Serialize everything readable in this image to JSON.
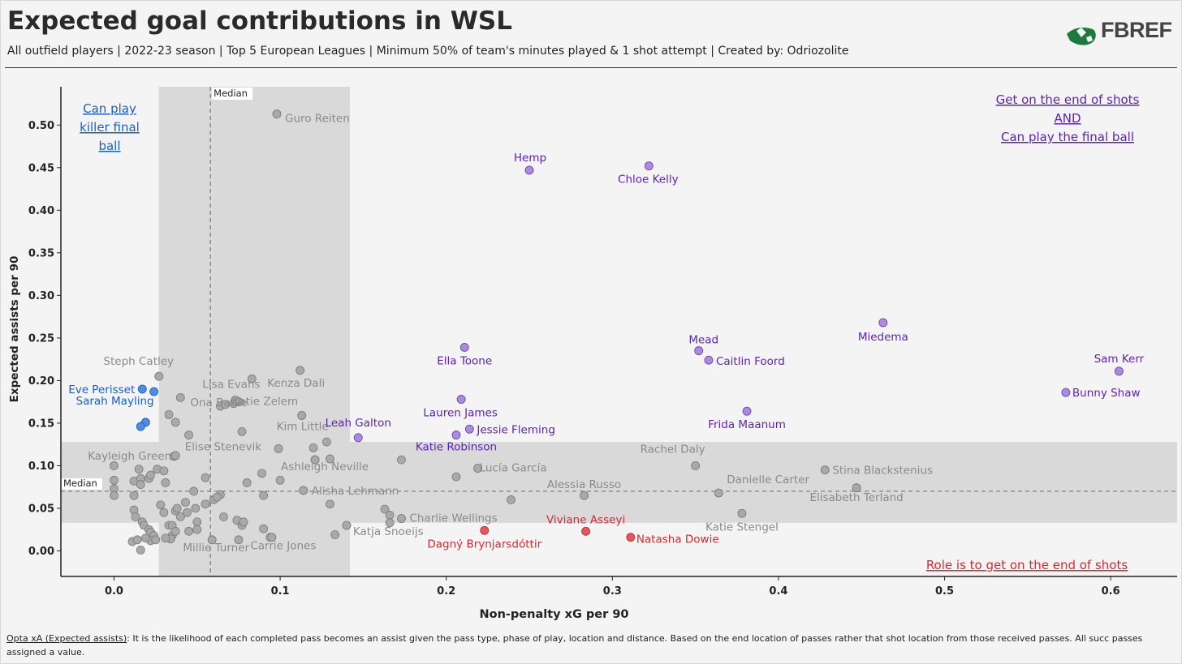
{
  "header": {
    "title": "Expected goal contributions in WSL",
    "subtitle": "All outfield players | 2022-23 season | Top 5 European Leagues | Minimum 50% of team's minutes played & 1 shot attempt | Created by: Odriozolite",
    "logo_text": "FBREF"
  },
  "footnote": {
    "term": "Opta xA (Expected assists)",
    "text": ": It is the likelihood of each completed pass becomes an assist given the pass type, phase of play, location and distance. Based on the end location of passes rather that shot location from those received passes. All succ passes assigned a value."
  },
  "colors": {
    "background": "#f4f4f4",
    "band": "#d9d9d9",
    "grey_point": "#a9a9a9",
    "grey_label": "#8a8a8a",
    "blue": "#4a8ee8",
    "blue_label": "#1c5fc9",
    "purple": "#a98be0",
    "purple_label": "#5b23b8",
    "red": "#e8565c",
    "red_label": "#d42a30"
  },
  "chart_data": {
    "type": "scatter",
    "xlabel": "Non-penalty xG per 90",
    "ylabel": "Expected assists per 90",
    "xlim": [
      -0.032,
      0.64
    ],
    "ylim": [
      -0.03,
      0.545
    ],
    "xticks": [
      0.0,
      0.1,
      0.2,
      0.3,
      0.4,
      0.5,
      0.6
    ],
    "yticks": [
      0.0,
      0.05,
      0.1,
      0.15,
      0.2,
      0.25,
      0.3,
      0.35,
      0.4,
      0.45,
      0.5
    ],
    "xtick_labels": [
      "0.0",
      "0.1",
      "0.2",
      "0.3",
      "0.4",
      "0.5",
      "0.6"
    ],
    "ytick_labels": [
      "0.00",
      "0.05",
      "0.10",
      "0.15",
      "0.20",
      "0.25",
      "0.30",
      "0.35",
      "0.40",
      "0.45",
      "0.50"
    ],
    "grid": false,
    "median_x": 0.058,
    "median_y": 0.07,
    "median_label": "Median",
    "band_x": [
      0.027,
      0.142
    ],
    "band_y": [
      0.033,
      0.128
    ],
    "quadrant_labels": [
      {
        "id": "top-left",
        "lines": [
          "Can play",
          "killer final",
          "ball"
        ],
        "color": "blue"
      },
      {
        "id": "top-right",
        "lines": [
          "Get on the end of shots",
          "AND",
          "Can play the final ball"
        ],
        "color": "purple"
      },
      {
        "id": "bottom-right",
        "lines": [
          "Role is to get on the end of shots"
        ],
        "color": "red"
      }
    ],
    "labeled_points": [
      {
        "name": "Guro Reiten",
        "x": 0.098,
        "y": 0.513,
        "group": "grey"
      },
      {
        "name": "Steph Catley",
        "x": 0.027,
        "y": 0.205,
        "group": "grey"
      },
      {
        "name": "Lisa Evans",
        "x": 0.075,
        "y": 0.175,
        "group": "grey"
      },
      {
        "name": "Ona Batlle",
        "x": 0.067,
        "y": 0.172,
        "group": "grey"
      },
      {
        "name": "Kenza Dali",
        "x": 0.112,
        "y": 0.212,
        "group": "grey"
      },
      {
        "name": "Katie Zelem",
        "x": 0.073,
        "y": 0.177,
        "group": "grey"
      },
      {
        "name": "Kim Little",
        "x": 0.113,
        "y": 0.159,
        "group": "grey"
      },
      {
        "name": "Kayleigh Green",
        "x": 0.037,
        "y": 0.112,
        "group": "grey"
      },
      {
        "name": "Elise Stenevik",
        "x": 0.099,
        "y": 0.12,
        "group": "grey"
      },
      {
        "name": "Ashleigh Neville",
        "x": 0.121,
        "y": 0.107,
        "group": "grey"
      },
      {
        "name": "Alisha Lehmann",
        "x": 0.114,
        "y": 0.071,
        "group": "grey"
      },
      {
        "name": "Charlie Wellings",
        "x": 0.173,
        "y": 0.038,
        "group": "grey"
      },
      {
        "name": "Katja Snoeijs",
        "x": 0.14,
        "y": 0.03,
        "group": "grey"
      },
      {
        "name": "Millie Turner",
        "x": 0.059,
        "y": 0.013,
        "group": "grey"
      },
      {
        "name": "Carrie Jones",
        "x": 0.095,
        "y": 0.016,
        "group": "grey"
      },
      {
        "name": "Rachel Daly",
        "x": 0.35,
        "y": 0.1,
        "group": "grey"
      },
      {
        "name": "Lucía García",
        "x": 0.219,
        "y": 0.097,
        "group": "grey"
      },
      {
        "name": "Alessia Russo",
        "x": 0.283,
        "y": 0.065,
        "group": "grey"
      },
      {
        "name": "Danielle Carter",
        "x": 0.364,
        "y": 0.068,
        "group": "grey"
      },
      {
        "name": "Stina Blackstenius",
        "x": 0.428,
        "y": 0.095,
        "group": "grey"
      },
      {
        "name": "Elisabeth Terland",
        "x": 0.447,
        "y": 0.074,
        "group": "grey"
      },
      {
        "name": "Katie Stengel",
        "x": 0.378,
        "y": 0.044,
        "group": "grey"
      },
      {
        "name": "Eve Perisset",
        "x": 0.017,
        "y": 0.19,
        "group": "blue"
      },
      {
        "name": "Sarah Mayling",
        "x": 0.024,
        "y": 0.187,
        "group": "blue"
      },
      {
        "name": "",
        "x": 0.019,
        "y": 0.151,
        "group": "blue"
      },
      {
        "name": "",
        "x": 0.016,
        "y": 0.146,
        "group": "blue"
      },
      {
        "name": "Hemp",
        "x": 0.25,
        "y": 0.447,
        "group": "purple"
      },
      {
        "name": "Chloe Kelly",
        "x": 0.322,
        "y": 0.452,
        "group": "purple"
      },
      {
        "name": "Miedema",
        "x": 0.463,
        "y": 0.268,
        "group": "purple"
      },
      {
        "name": "Mead",
        "x": 0.352,
        "y": 0.235,
        "group": "purple"
      },
      {
        "name": "Caitlin Foord",
        "x": 0.358,
        "y": 0.224,
        "group": "purple"
      },
      {
        "name": "Sam Kerr",
        "x": 0.605,
        "y": 0.211,
        "group": "purple"
      },
      {
        "name": "Bunny Shaw",
        "x": 0.573,
        "y": 0.186,
        "group": "purple"
      },
      {
        "name": "Ella Toone",
        "x": 0.211,
        "y": 0.239,
        "group": "purple"
      },
      {
        "name": "Lauren James",
        "x": 0.209,
        "y": 0.178,
        "group": "purple"
      },
      {
        "name": "Frida Maanum",
        "x": 0.381,
        "y": 0.164,
        "group": "purple"
      },
      {
        "name": "Leah Galton",
        "x": 0.147,
        "y": 0.133,
        "group": "purple"
      },
      {
        "name": "Jessie Fleming",
        "x": 0.214,
        "y": 0.143,
        "group": "purple"
      },
      {
        "name": "Katie Robinson",
        "x": 0.206,
        "y": 0.136,
        "group": "purple"
      },
      {
        "name": "Viviane Asseyi",
        "x": 0.284,
        "y": 0.023,
        "group": "red"
      },
      {
        "name": "Dagný Brynjarsdóttir",
        "x": 0.223,
        "y": 0.024,
        "group": "red"
      },
      {
        "name": "Natasha Dowie",
        "x": 0.311,
        "y": 0.016,
        "group": "red"
      }
    ],
    "other_points": [
      [
        0.0,
        0.1
      ],
      [
        0.0,
        0.083
      ],
      [
        0.0,
        0.073
      ],
      [
        0.0,
        0.065
      ],
      [
        0.012,
        0.082
      ],
      [
        0.015,
        0.096
      ],
      [
        0.016,
        0.085
      ],
      [
        0.016,
        0.078
      ],
      [
        0.021,
        0.085
      ],
      [
        0.022,
        0.089
      ],
      [
        0.026,
        0.096
      ],
      [
        0.03,
        0.094
      ],
      [
        0.031,
        0.08
      ],
      [
        0.033,
        0.16
      ],
      [
        0.036,
        0.111
      ],
      [
        0.037,
        0.151
      ],
      [
        0.04,
        0.18
      ],
      [
        0.045,
        0.136
      ],
      [
        0.055,
        0.086
      ],
      [
        0.064,
        0.17
      ],
      [
        0.072,
        0.173
      ],
      [
        0.077,
        0.14
      ],
      [
        0.08,
        0.08
      ],
      [
        0.083,
        0.202
      ],
      [
        0.089,
        0.091
      ],
      [
        0.1,
        0.083
      ],
      [
        0.12,
        0.121
      ],
      [
        0.121,
        0.107
      ],
      [
        0.128,
        0.128
      ],
      [
        0.13,
        0.108
      ],
      [
        0.13,
        0.055
      ],
      [
        0.173,
        0.107
      ],
      [
        0.206,
        0.087
      ],
      [
        0.239,
        0.06
      ],
      [
        0.012,
        0.065
      ],
      [
        0.012,
        0.048
      ],
      [
        0.013,
        0.04
      ],
      [
        0.017,
        0.034
      ],
      [
        0.018,
        0.03
      ],
      [
        0.021,
        0.025
      ],
      [
        0.022,
        0.022
      ],
      [
        0.024,
        0.018
      ],
      [
        0.028,
        0.054
      ],
      [
        0.03,
        0.045
      ],
      [
        0.033,
        0.03
      ],
      [
        0.035,
        0.03
      ],
      [
        0.035,
        0.018
      ],
      [
        0.037,
        0.047
      ],
      [
        0.037,
        0.023
      ],
      [
        0.038,
        0.05
      ],
      [
        0.04,
        0.04
      ],
      [
        0.043,
        0.057
      ],
      [
        0.044,
        0.045
      ],
      [
        0.045,
        0.023
      ],
      [
        0.049,
        0.05
      ],
      [
        0.05,
        0.034
      ],
      [
        0.05,
        0.025
      ],
      [
        0.055,
        0.055
      ],
      [
        0.06,
        0.06
      ],
      [
        0.064,
        0.066
      ],
      [
        0.066,
        0.04
      ],
      [
        0.074,
        0.036
      ],
      [
        0.077,
        0.03
      ],
      [
        0.078,
        0.034
      ],
      [
        0.075,
        0.013
      ],
      [
        0.09,
        0.026
      ],
      [
        0.094,
        0.016
      ],
      [
        0.133,
        0.019
      ],
      [
        0.163,
        0.049
      ],
      [
        0.166,
        0.042
      ],
      [
        0.166,
        0.033
      ],
      [
        0.022,
        0.012
      ],
      [
        0.011,
        0.011
      ],
      [
        0.014,
        0.013
      ],
      [
        0.016,
        0.001
      ],
      [
        0.019,
        0.015
      ],
      [
        0.025,
        0.013
      ],
      [
        0.034,
        0.014
      ],
      [
        0.031,
        0.015
      ],
      [
        0.09,
        0.065
      ],
      [
        0.062,
        0.063
      ],
      [
        0.048,
        0.07
      ]
    ]
  }
}
